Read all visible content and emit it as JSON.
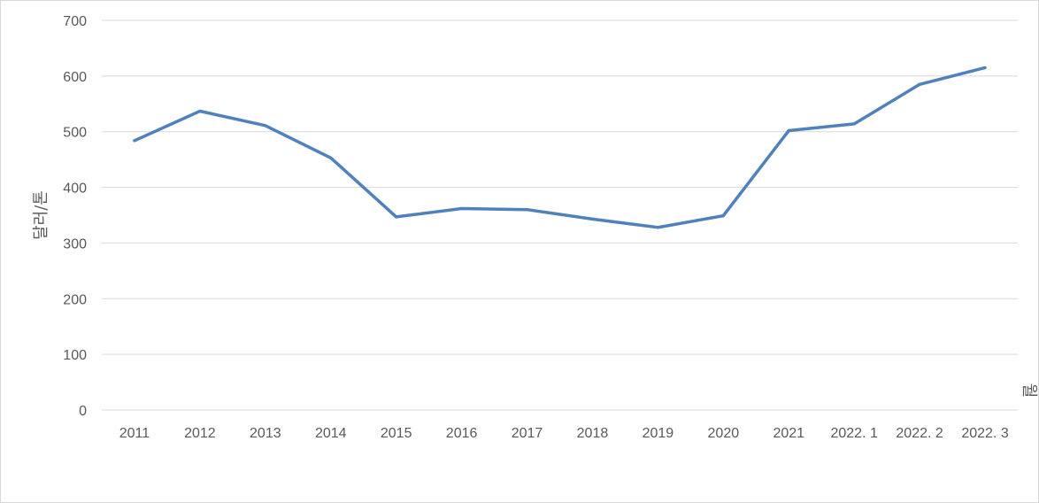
{
  "chart_data": {
    "type": "line",
    "title": "",
    "xlabel": "월",
    "ylabel": "달러/톤",
    "categories": [
      "2011",
      "2012",
      "2013",
      "2014",
      "2015",
      "2016",
      "2017",
      "2018",
      "2019",
      "2020",
      "2021",
      "2022. 1",
      "2022. 2",
      "2022. 3"
    ],
    "series": [
      {
        "values": [
          484,
          537,
          511,
          453,
          347,
          362,
          360,
          343,
          328,
          349,
          502,
          514,
          585,
          615
        ]
      }
    ],
    "ylim": [
      0,
      700
    ],
    "yticks": [
      0,
      100,
      200,
      300,
      400,
      500,
      600,
      700
    ],
    "grid": true,
    "colors": {
      "line": "#4f81bd",
      "grid": "#d9d9d9",
      "text": "#595959"
    }
  }
}
